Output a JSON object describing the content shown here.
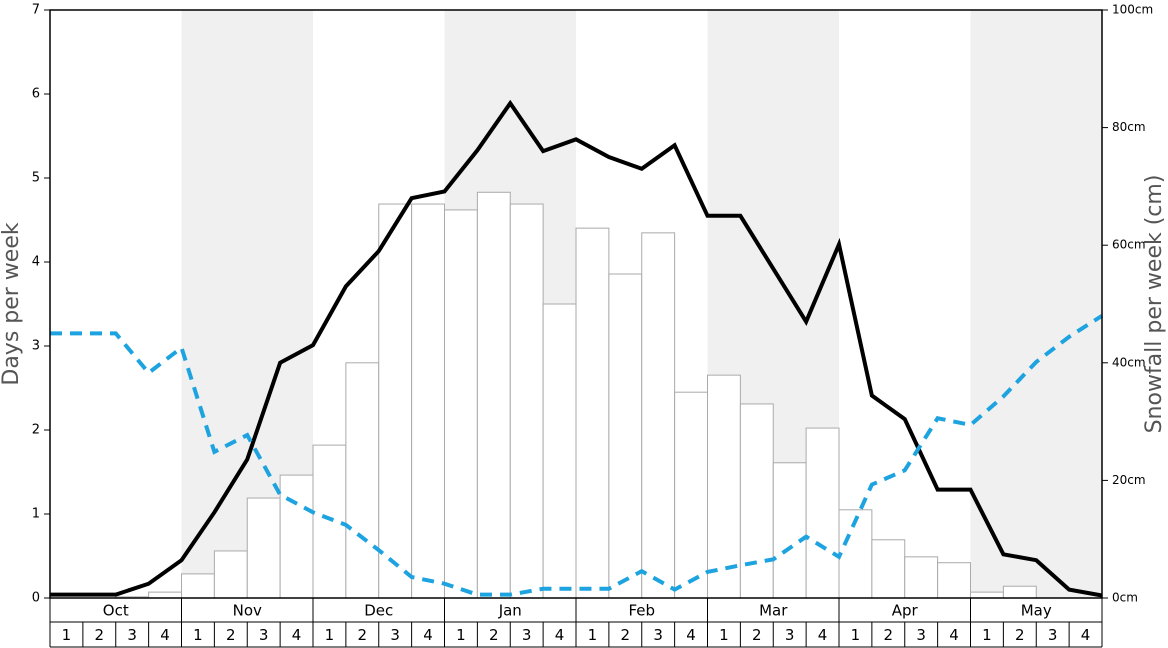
{
  "chart_data": {
    "type": "bar-line",
    "y_label": "Days per week",
    "y2_label": "Snowfall per week (cm)",
    "months": [
      "Oct",
      "Nov",
      "Dec",
      "Jan",
      "Feb",
      "Mar",
      "Apr",
      "May"
    ],
    "weeks": [
      1,
      2,
      3,
      4
    ],
    "ylim": [
      0,
      7
    ],
    "yticks": [
      0,
      1,
      2,
      3,
      4,
      5,
      6,
      7
    ],
    "y2lim": [
      0,
      100
    ],
    "y2ticks": [
      {
        "value": 0,
        "label": "0cm"
      },
      {
        "value": 20,
        "label": "20cm"
      },
      {
        "value": 40,
        "label": "40cm"
      },
      {
        "value": 60,
        "label": "60cm"
      },
      {
        "value": 80,
        "label": "80cm"
      },
      {
        "value": 100,
        "label": "100cm"
      }
    ],
    "bars": {
      "axis": "y2",
      "color": "#ffffff",
      "edge_color": "#aaaaaa",
      "values": [
        0,
        0,
        0.2,
        1.0,
        4.1,
        8.0,
        17.0,
        20.9,
        26.0,
        40.0,
        67.0,
        67.0,
        66.0,
        69.0,
        67.0,
        50.0,
        62.9,
        55.1,
        62.1,
        35.0,
        37.9,
        33.0,
        23.0,
        28.9,
        15.0,
        9.9,
        7.0,
        6.0,
        1.0,
        2.0,
        0,
        0
      ]
    },
    "series": [
      {
        "color": "#000000",
        "dash": false,
        "values": [
          0.04,
          0.04,
          0.04,
          0.17,
          0.45,
          1.02,
          1.65,
          2.8,
          3.01,
          3.71,
          4.13,
          4.76,
          4.84,
          5.33,
          5.89,
          5.32,
          5.46,
          5.25,
          5.11,
          5.39,
          4.55,
          4.55,
          3.92,
          3.29,
          4.21,
          2.41,
          2.13,
          1.29,
          1.29,
          0.52,
          0.45,
          0.1,
          0.03
        ]
      },
      {
        "color": "#1ca3e0",
        "dash": true,
        "values": [
          3.15,
          3.15,
          3.15,
          2.68,
          2.98,
          1.74,
          1.94,
          1.23,
          1.02,
          0.87,
          0.57,
          0.25,
          0.17,
          0.04,
          0.04,
          0.11,
          0.11,
          0.11,
          0.32,
          0.1,
          0.31,
          0.39,
          0.46,
          0.73,
          0.49,
          1.35,
          1.52,
          2.14,
          2.06,
          2.4,
          2.81,
          3.11,
          3.36
        ]
      }
    ],
    "shade_color": "#f0f0f0"
  }
}
